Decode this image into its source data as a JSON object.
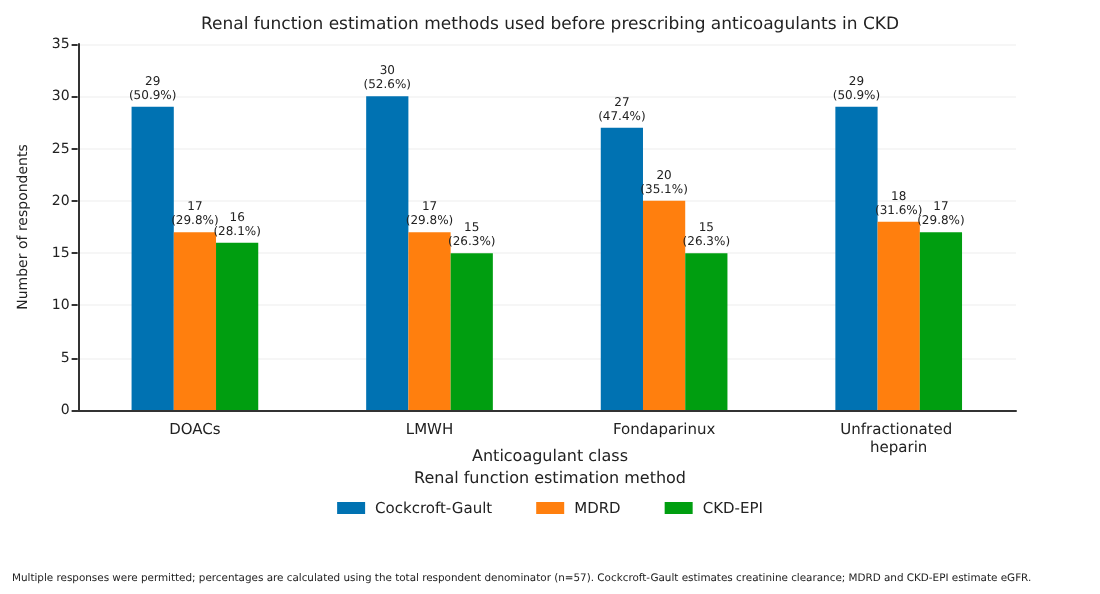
{
  "chart_data": {
    "type": "bar",
    "title": "Renal function estimation methods used before prescribing anticoagulants in CKD",
    "xlabel": "Anticoagulant class",
    "ylabel": "Number of respondents",
    "legend_title": "Renal function estimation method",
    "categories": [
      "DOACs",
      "LMWH",
      "Fondaparinux",
      "Unfractionated heparin"
    ],
    "series": [
      {
        "name": "Cockcroft-Gault",
        "color": "#0072b2",
        "values": [
          29,
          30,
          27,
          29
        ],
        "value_labels": [
          "29\n(50.9%)",
          "30\n(52.6%)",
          "27\n(47.4%)",
          "29\n(50.9%)"
        ]
      },
      {
        "name": "MDRD",
        "color": "#ff7f0e",
        "values": [
          17,
          17,
          20,
          18
        ],
        "value_labels": [
          "17\n(29.8%)",
          "17\n(29.8%)",
          "20\n(35.1%)",
          "18\n(31.6%)"
        ]
      },
      {
        "name": "CKD-EPI",
        "color": "#009e10",
        "values": [
          16,
          15,
          15,
          17
        ],
        "value_labels": [
          "16\n(28.1%)",
          "15\n(26.3%)",
          "15\n(26.3%)",
          "17\n(29.8%)"
        ]
      }
    ],
    "ylim": [
      0,
      35
    ],
    "yticks": [
      0,
      5,
      10,
      15,
      20,
      25,
      30,
      35
    ],
    "grid": "y",
    "legend": "bottom",
    "annotations": [
      "Multiple responses were permitted; percentages are calculated using the total respondent denominator (n=57). Cockcroft-Gault estimates creatinine clearance; MDRD and CKD-EPI estimate eGFR."
    ]
  }
}
